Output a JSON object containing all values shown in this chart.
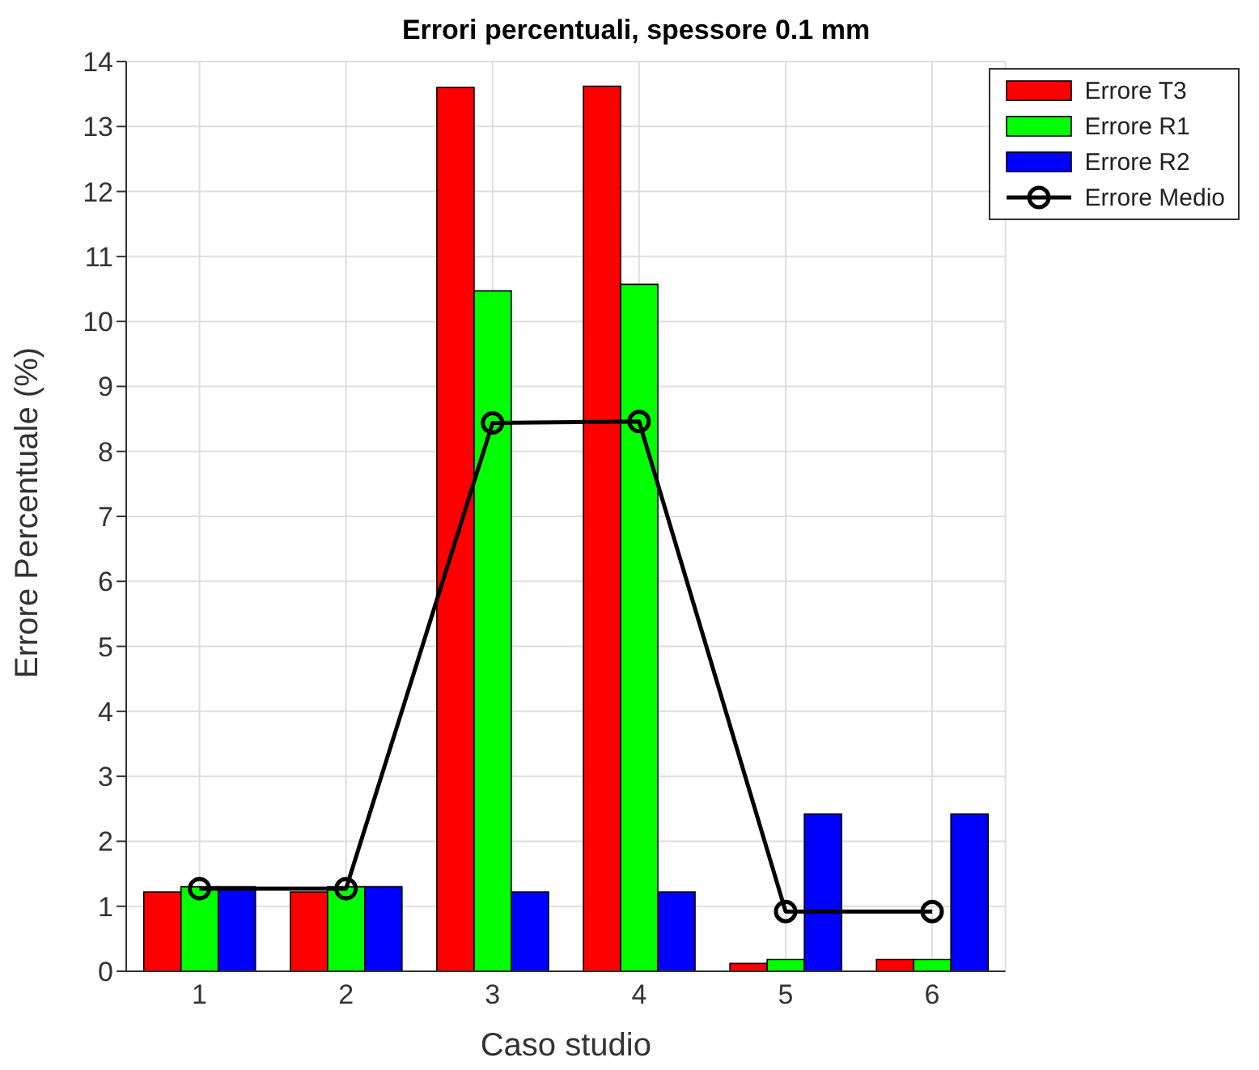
{
  "chart_data": {
    "type": "bar",
    "title": "Errori percentuali, spessore 0.1 mm",
    "xlabel": "Caso studio",
    "ylabel": "Errore Percentuale (%)",
    "categories": [
      "1",
      "2",
      "3",
      "4",
      "5",
      "6"
    ],
    "series": [
      {
        "name": "Errore T3",
        "color": "#ff0000",
        "values": [
          1.22,
          1.22,
          13.6,
          13.62,
          0.12,
          0.18
        ]
      },
      {
        "name": "Errore R1",
        "color": "#00ff00",
        "values": [
          1.3,
          1.3,
          10.47,
          10.57,
          0.18,
          0.18
        ]
      },
      {
        "name": "Errore R2",
        "color": "#0000ff",
        "values": [
          1.3,
          1.3,
          1.22,
          1.22,
          2.42,
          2.42
        ]
      },
      {
        "name": "Errore Medio",
        "type": "line",
        "color": "#000000",
        "marker": "circle",
        "values": [
          1.27,
          1.27,
          8.44,
          8.46,
          0.92,
          0.92
        ]
      }
    ],
    "ylim": [
      0,
      14
    ],
    "yticks": [
      0,
      1,
      2,
      3,
      4,
      5,
      6,
      7,
      8,
      9,
      10,
      11,
      12,
      13,
      14
    ],
    "grid": true,
    "legend": "top right"
  }
}
